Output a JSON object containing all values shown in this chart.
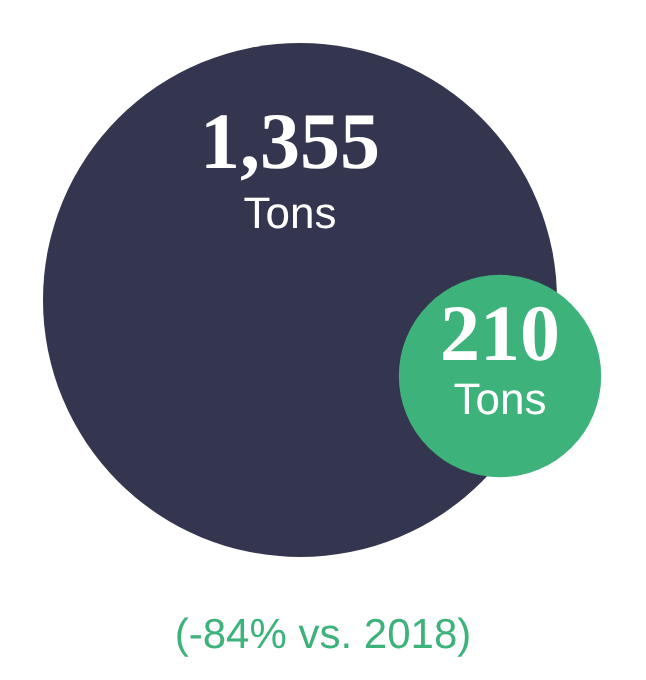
{
  "chart_data": {
    "type": "other",
    "categories": [
      null,
      null
    ],
    "values": [
      1355,
      210
    ],
    "value_labels": [
      "1,355",
      "210"
    ],
    "colors": [
      "#343650",
      "#3db37b"
    ],
    "annotations": [
      "Tons",
      "Tons",
      "(-84% vs. 2018)"
    ]
  }
}
